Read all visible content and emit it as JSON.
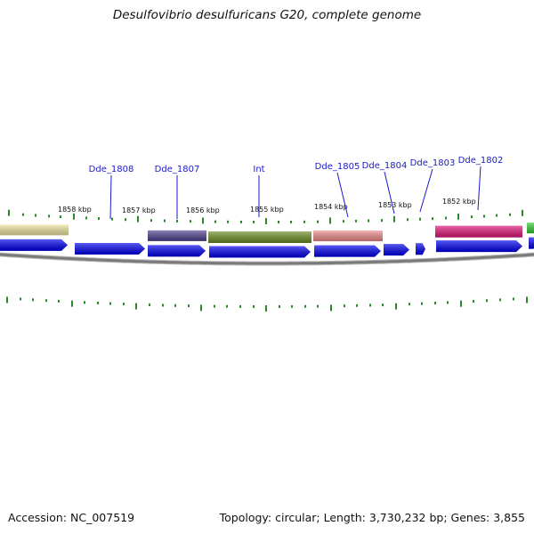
{
  "header": {
    "title": "Desulfovibrio desulfuricans G20, complete genome"
  },
  "footer": {
    "accession": "Accession: NC_007519",
    "summary": "Topology: circular; Length: 3,730,232 bp; Genes: 3,855"
  },
  "colors": {
    "cds_blue": "#0000ee",
    "tick_green": "#2a8a2a",
    "backbone": "#7a7a7a",
    "label_blue": "#1a1acc"
  },
  "tick_labels": [
    "1858 kbp",
    "1857 kbp",
    "1856 kbp",
    "1855 kbp",
    "1854 kbp",
    "1853 kbp",
    "1852 kbp"
  ],
  "gene_labels": [
    "Dde_1808",
    "Dde_1807",
    "Int",
    "Dde_1805",
    "Dde_1804",
    "Dde_1803",
    "Dde_1802"
  ],
  "domain_features": [
    {
      "name": "feature-pale-yellow",
      "color": "#efe6a0"
    },
    {
      "name": "feature-dark-purple",
      "color": "#4e3f8e"
    },
    {
      "name": "feature-olive-green",
      "color": "#6b8e23"
    },
    {
      "name": "feature-salmon-pink",
      "color": "#ee8a8a"
    },
    {
      "name": "feature-magenta",
      "color": "#e01478"
    },
    {
      "name": "feature-bright-green",
      "color": "#33cc33"
    }
  ]
}
